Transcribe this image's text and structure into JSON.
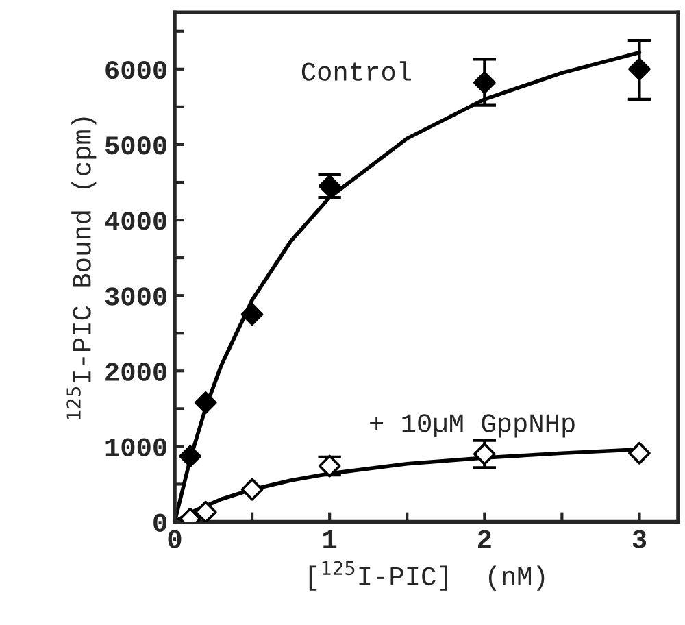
{
  "chart_data": {
    "type": "scatter",
    "xlabel": "[$^{125}$I-PIC]  (nM)",
    "ylabel": "$^{125}$I-PIC Bound (cpm)",
    "xlim": [
      0,
      3.25
    ],
    "ylim": [
      0,
      6750
    ],
    "xticks": [
      0,
      {
        "value": 0.5,
        "label": null
      },
      1,
      {
        "value": 1.5,
        "label": null
      },
      2,
      {
        "value": 2.5,
        "label": null
      },
      3
    ],
    "yticks": [
      0,
      {
        "value": 500,
        "label": null
      },
      1000,
      {
        "value": 1500,
        "label": null
      },
      2000,
      {
        "value": 2500,
        "label": null
      },
      3000,
      {
        "value": 3500,
        "label": null
      },
      4000,
      {
        "value": 4500,
        "label": null
      },
      5000,
      {
        "value": 5500,
        "label": null
      },
      6000,
      {
        "value": 6500,
        "label": null
      }
    ],
    "grid": false,
    "legend": false,
    "series": [
      {
        "color": "#000000",
        "marker": "diamond",
        "x": [
          0.1,
          0.2,
          0.5,
          1,
          2,
          3
        ],
        "values": [
          870,
          1580,
          2750,
          4450,
          5820,
          6000
        ],
        "errors": [
          null,
          null,
          null,
          [
            4300,
            4600
          ],
          [
            5520,
            6130
          ],
          [
            5600,
            6380
          ]
        ]
      },
      {
        "color": "#ffffff",
        "marker": "diamond",
        "x": [
          0.1,
          0.2,
          0.5,
          1,
          2,
          3
        ],
        "values": [
          40,
          130,
          430,
          740,
          900,
          910
        ],
        "errors": [
          null,
          null,
          null,
          [
            620,
            860
          ],
          [
            720,
            1080
          ],
          null
        ]
      },
      {
        "type": "line",
        "marker": "none",
        "color": "#000000",
        "x": [
          0,
          0.1,
          0.2,
          0.3,
          0.5,
          0.75,
          1,
          1.5,
          2,
          2.5,
          3
        ],
        "values": [
          0,
          830,
          1510,
          2070,
          2940,
          3720,
          4300,
          5080,
          5600,
          5950,
          6220
        ]
      },
      {
        "type": "line",
        "marker": "none",
        "color": "#000000",
        "x": [
          0,
          0.1,
          0.2,
          0.3,
          0.5,
          0.75,
          1,
          1.5,
          2,
          2.5,
          3
        ],
        "values": [
          0,
          120,
          210,
          300,
          430,
          550,
          640,
          770,
          850,
          910,
          960
        ]
      }
    ],
    "annotations": [
      "Control",
      "+ 10µM GppNHp"
    ]
  }
}
